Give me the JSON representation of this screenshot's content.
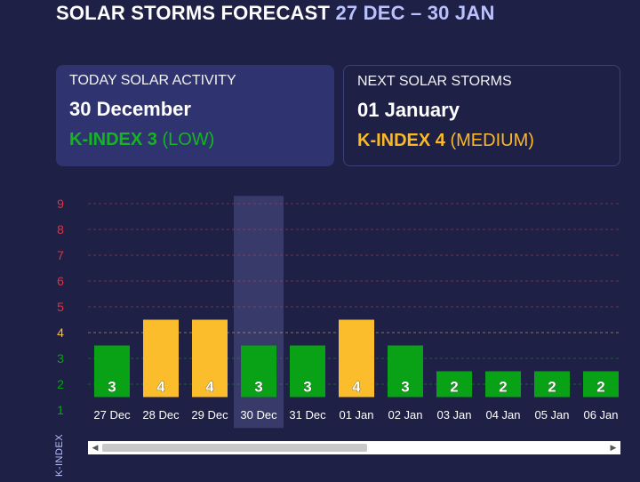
{
  "header": {
    "title": "SOLAR STORMS FORECAST",
    "range": "27 DEC – 30 JAN"
  },
  "today": {
    "label": "TODAY SOLAR ACTIVITY",
    "date": "30 December",
    "kindex": "K-INDEX 3",
    "level": "(LOW)"
  },
  "next": {
    "label": "NEXT SOLAR STORMS",
    "date": "01 January",
    "kindex": "K-INDEX 4",
    "level": "(MEDIUM)"
  },
  "colors": {
    "low": "#09a115",
    "medium": "#fcbd2c",
    "high": "#e0323f",
    "highlight": "#3d4170"
  },
  "chart_data": {
    "type": "bar",
    "ylabel": "K-INDEX",
    "ylim": [
      1,
      9
    ],
    "yticks": [
      1,
      2,
      3,
      4,
      5,
      6,
      7,
      8,
      9
    ],
    "categories": [
      "27 Dec",
      "28 Dec",
      "29 Dec",
      "30 Dec",
      "31 Dec",
      "01 Jan",
      "02 Jan",
      "03 Jan",
      "04 Jan",
      "05 Jan",
      "06 Jan"
    ],
    "values": [
      3,
      4,
      4,
      3,
      3,
      4,
      3,
      2,
      2,
      2,
      2
    ],
    "highlighted_category": "30 Dec",
    "grid": true
  }
}
